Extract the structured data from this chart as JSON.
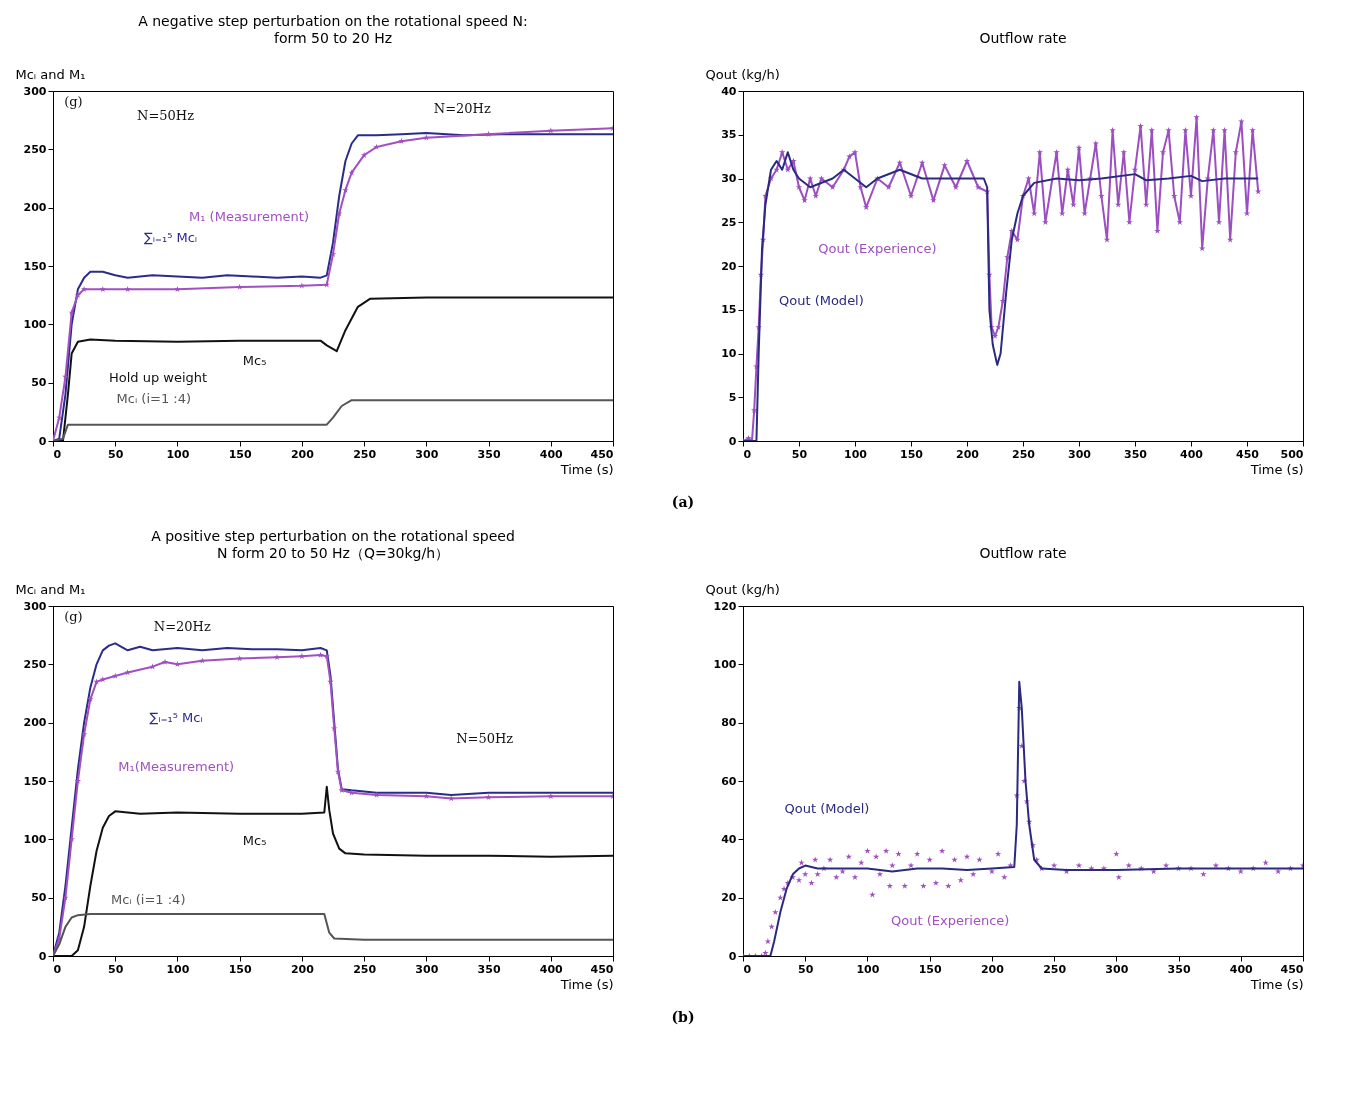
{
  "chart_data": [
    {
      "type": "line",
      "title": "A negative step perturbation on the rotational speed N:",
      "subtitle": "form 50 to 20 Hz",
      "xlabel": "Time (s)",
      "ylabel": "Mcᵢ and M₁",
      "xlim": [
        0,
        450
      ],
      "xticks": [
        0,
        50,
        100,
        150,
        200,
        250,
        300,
        350,
        400,
        450
      ],
      "ylim": [
        0,
        300
      ],
      "yticks": [
        0,
        50,
        100,
        150,
        200,
        250,
        300
      ],
      "series": [
        {
          "name": "∑ᵢ₌₁⁵ Mcᵢ",
          "color": "#2b2b8c",
          "x": [
            0,
            5,
            10,
            15,
            20,
            25,
            30,
            40,
            50,
            60,
            80,
            100,
            120,
            140,
            160,
            180,
            200,
            215,
            220,
            225,
            230,
            235,
            240,
            245,
            260,
            280,
            300,
            330,
            360,
            400,
            450
          ],
          "values": [
            0,
            2,
            40,
            100,
            130,
            140,
            145,
            145,
            142,
            140,
            142,
            141,
            140,
            142,
            141,
            140,
            141,
            140,
            142,
            170,
            210,
            240,
            255,
            262,
            262,
            263,
            264,
            262,
            263,
            263,
            263
          ]
        },
        {
          "name": "M₁ (Measurement)",
          "color": "#a050c0",
          "marker": "star",
          "x": [
            0,
            5,
            10,
            15,
            20,
            25,
            40,
            60,
            100,
            150,
            200,
            220,
            225,
            230,
            235,
            240,
            250,
            260,
            280,
            300,
            350,
            400,
            450
          ],
          "values": [
            0,
            20,
            55,
            110,
            125,
            130,
            130,
            130,
            130,
            132,
            133,
            134,
            160,
            195,
            215,
            230,
            245,
            252,
            257,
            260,
            263,
            266,
            268
          ]
        },
        {
          "name": "Mc₅",
          "color": "#111111",
          "x": [
            0,
            8,
            12,
            15,
            20,
            30,
            50,
            100,
            150,
            200,
            215,
            220,
            228,
            235,
            245,
            255,
            300,
            450
          ],
          "values": [
            0,
            0,
            40,
            75,
            85,
            87,
            86,
            85,
            86,
            86,
            86,
            82,
            77,
            95,
            115,
            122,
            123,
            123
          ]
        },
        {
          "name": "Mcᵢ (i=1 :4)",
          "color": "#555555",
          "x": [
            0,
            8,
            12,
            50,
            100,
            150,
            200,
            220,
            225,
            232,
            240,
            300,
            450
          ],
          "values": [
            0,
            2,
            14,
            14,
            14,
            14,
            14,
            14,
            20,
            30,
            35,
            35,
            35
          ]
        }
      ],
      "annotations": [
        "(g)",
        "N=50Hz",
        "N=20Hz",
        "Hold up weight",
        "(a)"
      ]
    },
    {
      "type": "line",
      "title": "Outflow rate",
      "xlabel": "Time (s)",
      "ylabel": "Qout (kg/h)",
      "xlim": [
        0,
        500
      ],
      "xticks": [
        0,
        50,
        100,
        150,
        200,
        250,
        300,
        350,
        400,
        450,
        500
      ],
      "series": [
        {
          "name": "Qout (Experience)",
          "color": "#9b4fc0",
          "marker": "star",
          "x": [
            0,
            5,
            8,
            10,
            12,
            14,
            16,
            18,
            20,
            25,
            30,
            35,
            40,
            45,
            50,
            55,
            60,
            65,
            70,
            80,
            90,
            95,
            100,
            105,
            110,
            120,
            130,
            140,
            150,
            160,
            170,
            180,
            190,
            200,
            210,
            218,
            220,
            222,
            225,
            228,
            232,
            236,
            240,
            245,
            250,
            255,
            260,
            265,
            270,
            280,
            285,
            290,
            295,
            300,
            305,
            310,
            315,
            320,
            325,
            330,
            335,
            340,
            345,
            350,
            355,
            360,
            365,
            370,
            375,
            380,
            385,
            390,
            395,
            400,
            405,
            410,
            415,
            420,
            425,
            430,
            435,
            440,
            445,
            450,
            455,
            460
          ],
          "values": [
            0,
            0.3,
            0,
            3.5,
            8.5,
            13,
            19,
            23,
            28,
            30,
            31,
            33,
            31,
            32,
            29,
            27.5,
            30,
            28,
            30,
            29,
            31,
            32.5,
            33,
            29,
            26.7,
            30,
            29,
            31.8,
            28,
            31.8,
            27.5,
            31.5,
            29,
            32,
            29,
            28.5,
            19,
            13,
            12,
            13,
            16,
            21,
            24,
            23,
            28,
            30,
            26,
            33,
            25,
            33,
            26,
            31,
            27,
            33.5,
            26,
            30,
            34,
            28,
            23,
            35.5,
            27,
            33,
            25,
            31,
            36,
            27,
            35.5,
            24,
            33,
            35.5,
            28,
            25,
            35.5,
            28,
            37,
            22,
            30,
            35.5,
            25,
            35.5,
            23,
            33,
            36.5,
            26,
            35.5,
            28.5
          ]
        },
        {
          "name": "Qout (Model)",
          "color": "#2a2a80",
          "x": [
            0,
            12,
            14,
            17,
            20,
            25,
            30,
            35,
            40,
            45,
            50,
            60,
            80,
            90,
            100,
            110,
            120,
            140,
            160,
            180,
            200,
            215,
            218,
            220,
            223,
            227,
            230,
            235,
            240,
            245,
            250,
            260,
            280,
            300,
            320,
            350,
            360,
            380,
            400,
            410,
            430,
            460
          ],
          "values": [
            0,
            0,
            10,
            22,
            27,
            31,
            32,
            31,
            33,
            31,
            30,
            29,
            30,
            31,
            30,
            29,
            30,
            31,
            30,
            30,
            30,
            30,
            29,
            15,
            11,
            8.7,
            10,
            17,
            23,
            26,
            28,
            29.5,
            30,
            29.8,
            30,
            30.5,
            29.8,
            30,
            30.3,
            29.7,
            30,
            30
          ]
        }
      ],
      "ylim": [
        0,
        40
      ],
      "yticks": [
        0,
        5,
        10,
        15,
        20,
        25,
        30,
        35,
        40
      ]
    },
    {
      "type": "line",
      "title": "A positive step perturbation on the rotational speed",
      "subtitle": "N form 20 to 50 Hz（Q=30kg/h）",
      "xlabel": "Time (s)",
      "ylabel": "Mcᵢ and M₁",
      "xlim": [
        0,
        450
      ],
      "xticks": [
        0,
        50,
        100,
        150,
        200,
        250,
        300,
        350,
        400,
        450
      ],
      "ylim": [
        0,
        300
      ],
      "yticks": [
        0,
        50,
        100,
        150,
        200,
        250,
        300
      ],
      "series": [
        {
          "name": "∑ᵢ₌₁⁵ Mcᵢ",
          "color": "#2b2b8c",
          "x": [
            0,
            5,
            10,
            15,
            20,
            25,
            30,
            35,
            40,
            45,
            50,
            60,
            70,
            80,
            100,
            120,
            140,
            160,
            180,
            200,
            215,
            220,
            223,
            226,
            229,
            232,
            240,
            260,
            300,
            320,
            350,
            400,
            450
          ],
          "values": [
            0,
            20,
            60,
            110,
            160,
            200,
            230,
            250,
            262,
            266,
            268,
            262,
            265,
            262,
            264,
            262,
            264,
            263,
            263,
            262,
            264,
            262,
            240,
            200,
            160,
            143,
            142,
            140,
            140,
            138,
            140,
            140,
            140
          ]
        },
        {
          "name": "M₁(Measurement)",
          "color": "#a050c0",
          "marker": "star",
          "x": [
            0,
            5,
            10,
            15,
            20,
            25,
            30,
            35,
            40,
            50,
            60,
            80,
            90,
            100,
            120,
            150,
            180,
            200,
            215,
            220,
            223,
            226,
            229,
            232,
            240,
            260,
            300,
            320,
            350,
            400,
            450
          ],
          "values": [
            0,
            15,
            50,
            100,
            150,
            190,
            220,
            235,
            237,
            240,
            243,
            248,
            252,
            250,
            253,
            255,
            256,
            257,
            258,
            257,
            235,
            195,
            158,
            142,
            140,
            138,
            137,
            135,
            136,
            137,
            137
          ]
        },
        {
          "name": "Mc₅",
          "color": "#111111",
          "x": [
            0,
            15,
            20,
            25,
            30,
            35,
            40,
            45,
            50,
            70,
            100,
            150,
            200,
            218,
            220,
            222,
            225,
            230,
            235,
            250,
            300,
            350,
            400,
            450
          ],
          "values": [
            0,
            0,
            5,
            25,
            60,
            90,
            110,
            120,
            124,
            122,
            123,
            122,
            122,
            123,
            145,
            125,
            105,
            92,
            88,
            87,
            86,
            86,
            85,
            86
          ]
        },
        {
          "name": "Mcᵢ (i=1 :4)",
          "color": "#555555",
          "x": [
            0,
            5,
            10,
            15,
            20,
            30,
            50,
            100,
            150,
            200,
            218,
            222,
            226,
            250,
            300,
            400,
            450
          ],
          "values": [
            0,
            10,
            25,
            33,
            35,
            36,
            36,
            36,
            36,
            36,
            36,
            20,
            15,
            14,
            14,
            14,
            14
          ]
        }
      ],
      "annotations": [
        "(g)",
        "N=20Hz",
        "N=50Hz",
        "(b)"
      ]
    },
    {
      "type": "line",
      "title": "Outflow rate",
      "xlabel": "Time (s)",
      "ylabel": "Qout (kg/h)",
      "xlim": [
        0,
        450
      ],
      "xticks": [
        0,
        50,
        100,
        150,
        200,
        250,
        300,
        350,
        400,
        450
      ],
      "yticks": [
        0,
        20,
        40,
        60,
        80,
        100,
        120
      ],
      "series": [
        {
          "name": "Qout (Experience)",
          "type": "scatter",
          "color": "#a050c0",
          "marker": "star",
          "x": [
            0,
            5,
            10,
            15,
            18,
            20,
            23,
            26,
            30,
            33,
            36,
            40,
            45,
            47,
            50,
            55,
            58,
            60,
            65,
            70,
            75,
            80,
            85,
            90,
            95,
            100,
            104,
            107,
            110,
            115,
            118,
            120,
            125,
            130,
            135,
            140,
            145,
            150,
            155,
            160,
            165,
            170,
            175,
            180,
            185,
            190,
            200,
            205,
            210,
            215,
            220,
            222,
            224,
            226,
            228,
            230,
            233,
            236,
            240,
            250,
            260,
            270,
            280,
            290,
            300,
            302,
            310,
            320,
            330,
            340,
            350,
            360,
            370,
            380,
            390,
            400,
            410,
            420,
            430,
            440,
            450
          ],
          "values": [
            0,
            0,
            0,
            0,
            1,
            5,
            10,
            15,
            20,
            23,
            25,
            27,
            26,
            32,
            28,
            25,
            33,
            28,
            30,
            33,
            27,
            29,
            34,
            27,
            32,
            36,
            21,
            34,
            28,
            36,
            24,
            31,
            35,
            24,
            31,
            35,
            24,
            33,
            25,
            36,
            24,
            33,
            26,
            34,
            28,
            33,
            29,
            35,
            27,
            31,
            55,
            85,
            72,
            60,
            53,
            46,
            38,
            33,
            30,
            31,
            29,
            31,
            30,
            30,
            35,
            27,
            31,
            30,
            29,
            31,
            30,
            30,
            28,
            31,
            30,
            29,
            30,
            32,
            29,
            30,
            31
          ]
        },
        {
          "name": "Qout (Model)",
          "color": "#2a2a80",
          "x": [
            0,
            22,
            25,
            30,
            35,
            40,
            45,
            50,
            60,
            80,
            100,
            120,
            140,
            160,
            180,
            200,
            218,
            220,
            222,
            224,
            227,
            230,
            234,
            240,
            260,
            300,
            350,
            400,
            450
          ],
          "values": [
            0,
            0,
            5,
            15,
            23,
            28,
            30,
            31,
            30,
            30,
            30,
            29,
            30,
            30,
            29.5,
            30,
            30.5,
            45,
            94,
            85,
            60,
            45,
            33,
            30,
            29.5,
            29.5,
            30,
            30,
            30
          ]
        }
      ],
      "ylim": [
        0,
        120
      ]
    }
  ]
}
